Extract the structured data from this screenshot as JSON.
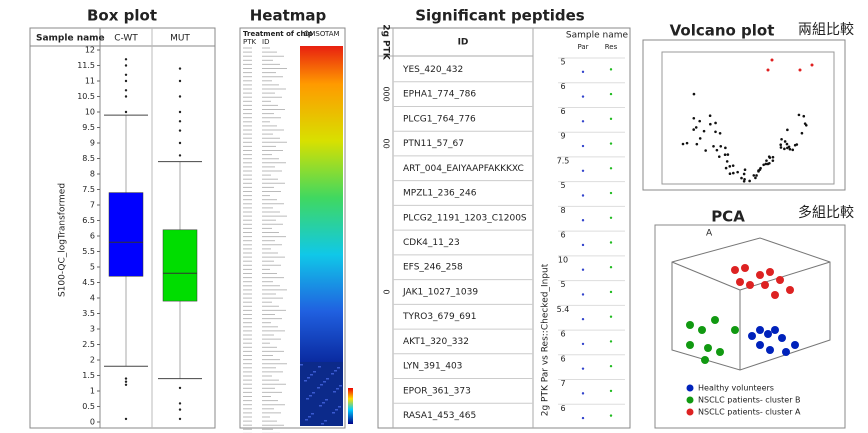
{
  "chart_data": {
    "type": "box",
    "title": "Box plot",
    "header": "Sample name",
    "y_label": "S100-QC_logTransformed",
    "ylim": [
      0,
      12
    ],
    "yticks": [
      0,
      0.5,
      1,
      1.5,
      2,
      2.5,
      3,
      3.5,
      4,
      4.5,
      5,
      5.5,
      6,
      6.5,
      7,
      7.5,
      8,
      8.5,
      9,
      9.5,
      10,
      10.5,
      11,
      11.5,
      12
    ],
    "boxes": [
      {
        "name": "C-WT",
        "color": "#0000ff",
        "whisker_low": 1.8,
        "q1": 4.7,
        "median": 5.8,
        "q3": 7.4,
        "whisker_high": 9.9,
        "outliers": [
          0.1,
          1.2,
          1.3,
          1.4,
          10,
          10.5,
          10.7,
          11,
          11.2,
          11.5,
          11.7
        ]
      },
      {
        "name": "MUT",
        "color": "#00dd00",
        "whisker_low": 1.4,
        "q1": 3.9,
        "median": 4.8,
        "q3": 6.2,
        "whisker_high": 8.4,
        "outliers": [
          0.1,
          0.4,
          0.6,
          1.1,
          8.6,
          9,
          9.4,
          9.7,
          10,
          10.5,
          11,
          11.4
        ]
      }
    ]
  },
  "heatmap": {
    "title": "Heatmap",
    "header": "Treatment of chip",
    "columns": [
      "PTK",
      "ID"
    ],
    "conditions": [
      "DMSO",
      "TAM"
    ]
  },
  "peptides": {
    "title": "Significant peptides",
    "group_header": "2g PTK",
    "id_header": "ID",
    "sample_header": "Sample name",
    "samples": [
      "Par",
      "Res"
    ],
    "axis_label": "2g PTK Par vs Res::Checked_Input",
    "groups": [
      {
        "label": "000",
        "row": 1
      },
      {
        "label": "00",
        "row": 3
      },
      {
        "label": "0",
        "row": 9
      }
    ],
    "rows": [
      {
        "id": "YES_420_432",
        "tick": "5"
      },
      {
        "id": "EPHA1_774_786",
        "tick": "6"
      },
      {
        "id": "PLCG1_764_776",
        "tick": "6"
      },
      {
        "id": "PTN11_57_67",
        "tick": "9"
      },
      {
        "id": "ART_004_EAIYAAPFAKKKXC",
        "tick": "7.5"
      },
      {
        "id": "MPZL1_236_246",
        "tick": "5"
      },
      {
        "id": "PLCG2_1191_1203_C1200S",
        "tick": "8"
      },
      {
        "id": "CDK4_11_23",
        "tick": "6"
      },
      {
        "id": "EFS_246_258",
        "tick": "10"
      },
      {
        "id": "JAK1_1027_1039",
        "tick": "5"
      },
      {
        "id": "TYRO3_679_691",
        "tick": "5.4"
      },
      {
        "id": "AKT1_320_332",
        "tick": "6"
      },
      {
        "id": "LYN_391_403",
        "tick": "6"
      },
      {
        "id": "EPOR_361_373",
        "tick": "7"
      },
      {
        "id": "RASA1_453_465",
        "tick": "6"
      }
    ]
  },
  "volcano": {
    "title": "Volcano plot",
    "note": "兩組比較"
  },
  "pca": {
    "title": "PCA",
    "note": "多組比較",
    "panel": "A",
    "legend": [
      {
        "name": "Healthy volunteers",
        "color": "#0022bb"
      },
      {
        "name": "NSCLC patients- cluster B",
        "color": "#119911"
      },
      {
        "name": "NSCLC patients- cluster A",
        "color": "#dd2222"
      }
    ]
  }
}
